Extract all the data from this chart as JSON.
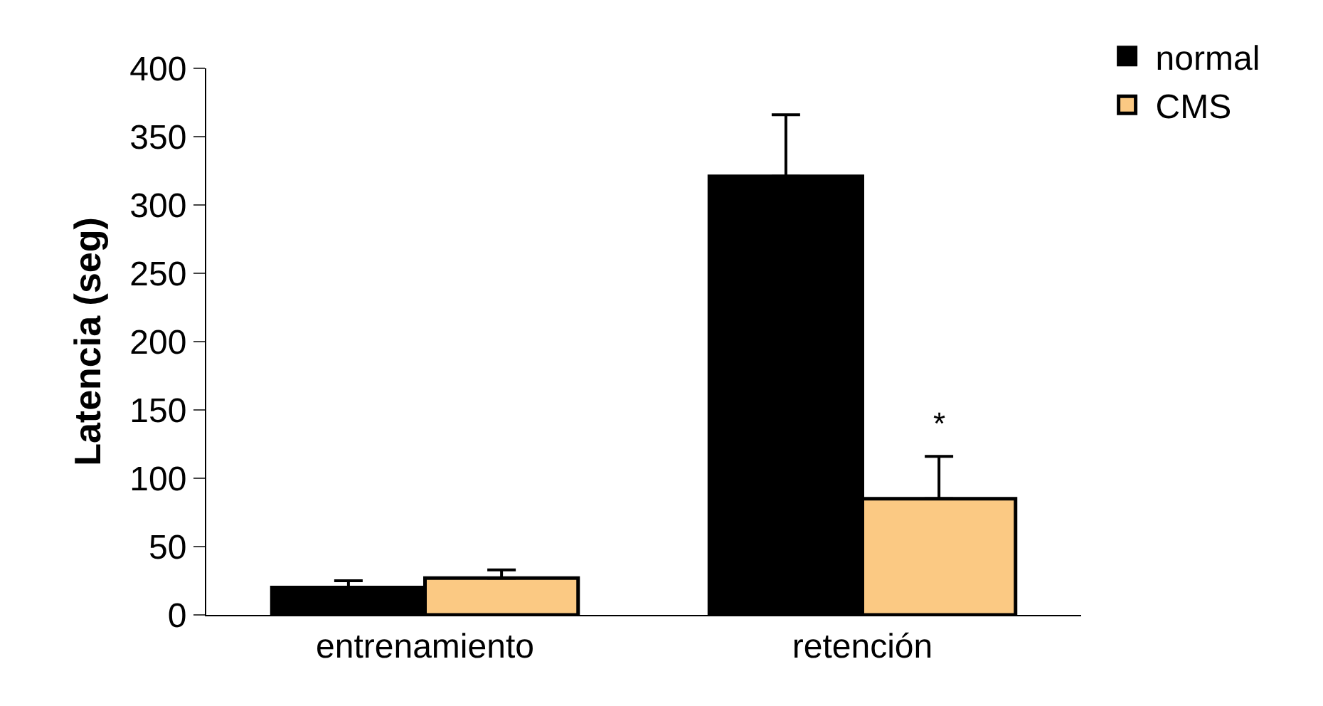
{
  "chart_data": {
    "type": "bar",
    "ylabel": "Latencia (seg)",
    "categories": [
      "entrenamiento",
      "retención"
    ],
    "series": [
      {
        "name": "normal",
        "color": "#000000",
        "values": [
          20,
          321
        ],
        "errors": [
          [
            20,
            25
          ],
          [
            321,
            366
          ]
        ]
      },
      {
        "name": "CMS",
        "color": "#fbc983",
        "values": [
          27,
          85
        ],
        "errors": [
          [
            27,
            33
          ],
          [
            85,
            116
          ]
        ]
      }
    ],
    "ylim": [
      0,
      400
    ],
    "yticks": [
      0,
      50,
      100,
      150,
      200,
      250,
      300,
      350,
      400
    ],
    "grid": false,
    "legend": "top right",
    "annotations": [
      {
        "text": "*",
        "x": "retención",
        "y": 125
      }
    ]
  }
}
